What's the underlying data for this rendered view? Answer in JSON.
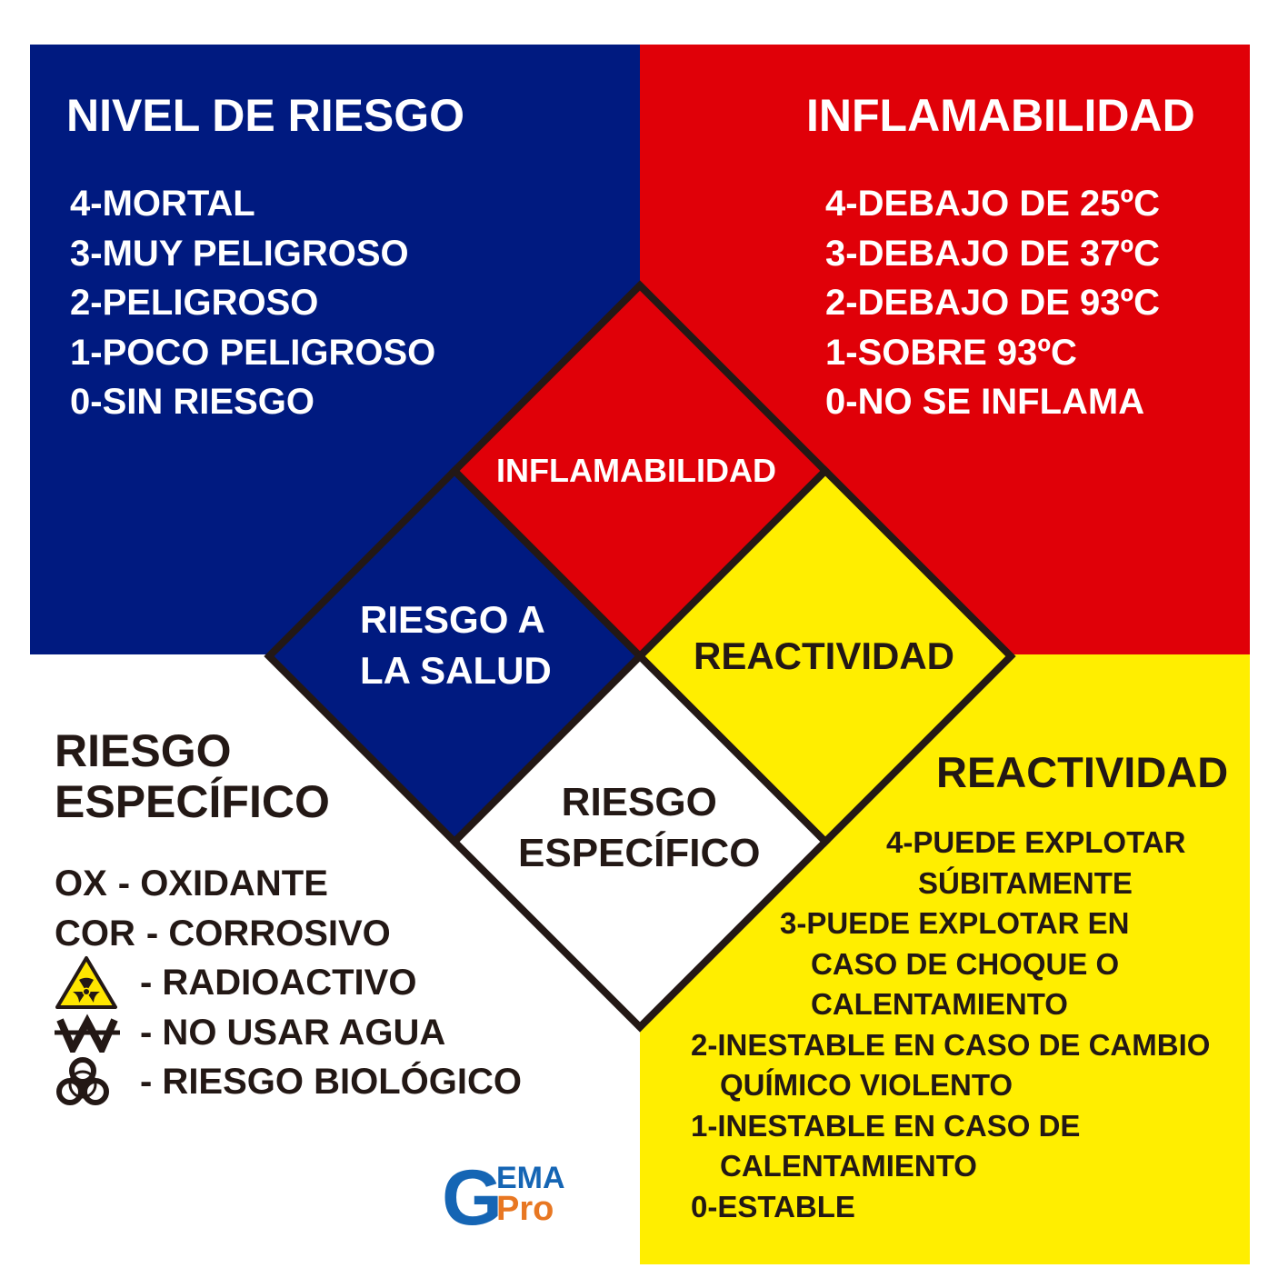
{
  "colors": {
    "blue": "#001A80",
    "red": "#E00008",
    "yellow": "#FFEE00",
    "white": "#FFFFFF",
    "text_dark": "#231815"
  },
  "health": {
    "title": "NIVEL DE RIESGO",
    "levels": [
      "4-MORTAL",
      "3-MUY PELIGROSO",
      "2-PELIGROSO",
      "1-POCO PELIGROSO",
      "0-SIN RIESGO"
    ]
  },
  "flammability": {
    "title": "INFLAMABILIDAD",
    "levels": [
      "4-DEBAJO DE 25ºC",
      "3-DEBAJO DE 37ºC",
      "2-DEBAJO DE 93ºC",
      "1-SOBRE 93ºC",
      "0-NO SE INFLAMA"
    ]
  },
  "specific": {
    "title_lines": [
      "RIESGO",
      "ESPECÍFICO"
    ],
    "items": [
      {
        "prefix": "OX",
        "label": "- OXIDANTE",
        "icon": ""
      },
      {
        "prefix": "COR",
        "label": "- CORROSIVO",
        "icon": ""
      },
      {
        "prefix": "",
        "label": "- RADIOACTIVO",
        "icon": "radioactive-icon"
      },
      {
        "prefix": "",
        "label": "- NO USAR AGUA",
        "icon": "no-water-icon"
      },
      {
        "prefix": "",
        "label": "- RIESGO BIOLÓGICO",
        "icon": "biohazard-icon"
      }
    ]
  },
  "reactivity": {
    "title": "REACTIVIDAD",
    "levels": [
      {
        "lines": [
          "4-PUEDE EXPLOTAR",
          "SÚBITAMENTE"
        ]
      },
      {
        "lines": [
          "3-PUEDE EXPLOTAR EN",
          "CASO DE CHOQUE O",
          "CALENTAMIENTO"
        ]
      },
      {
        "lines": [
          "2-INESTABLE EN CASO DE CAMBIO",
          "QUÍMICO VIOLENTO"
        ]
      },
      {
        "lines": [
          "1-INESTABLE EN CASO DE",
          "CALENTAMIENTO"
        ]
      },
      {
        "lines": [
          "0-ESTABLE"
        ]
      }
    ]
  },
  "diamond": {
    "top": "INFLAMABILIDAD",
    "left_lines": [
      "RIESGO A",
      "LA SALUD"
    ],
    "right": "REACTIVIDAD",
    "bottom_lines": [
      "RIESGO",
      "ESPECÍFICO"
    ]
  },
  "logo": {
    "g": "G",
    "ema": "EMA",
    "pro": "Pro"
  }
}
